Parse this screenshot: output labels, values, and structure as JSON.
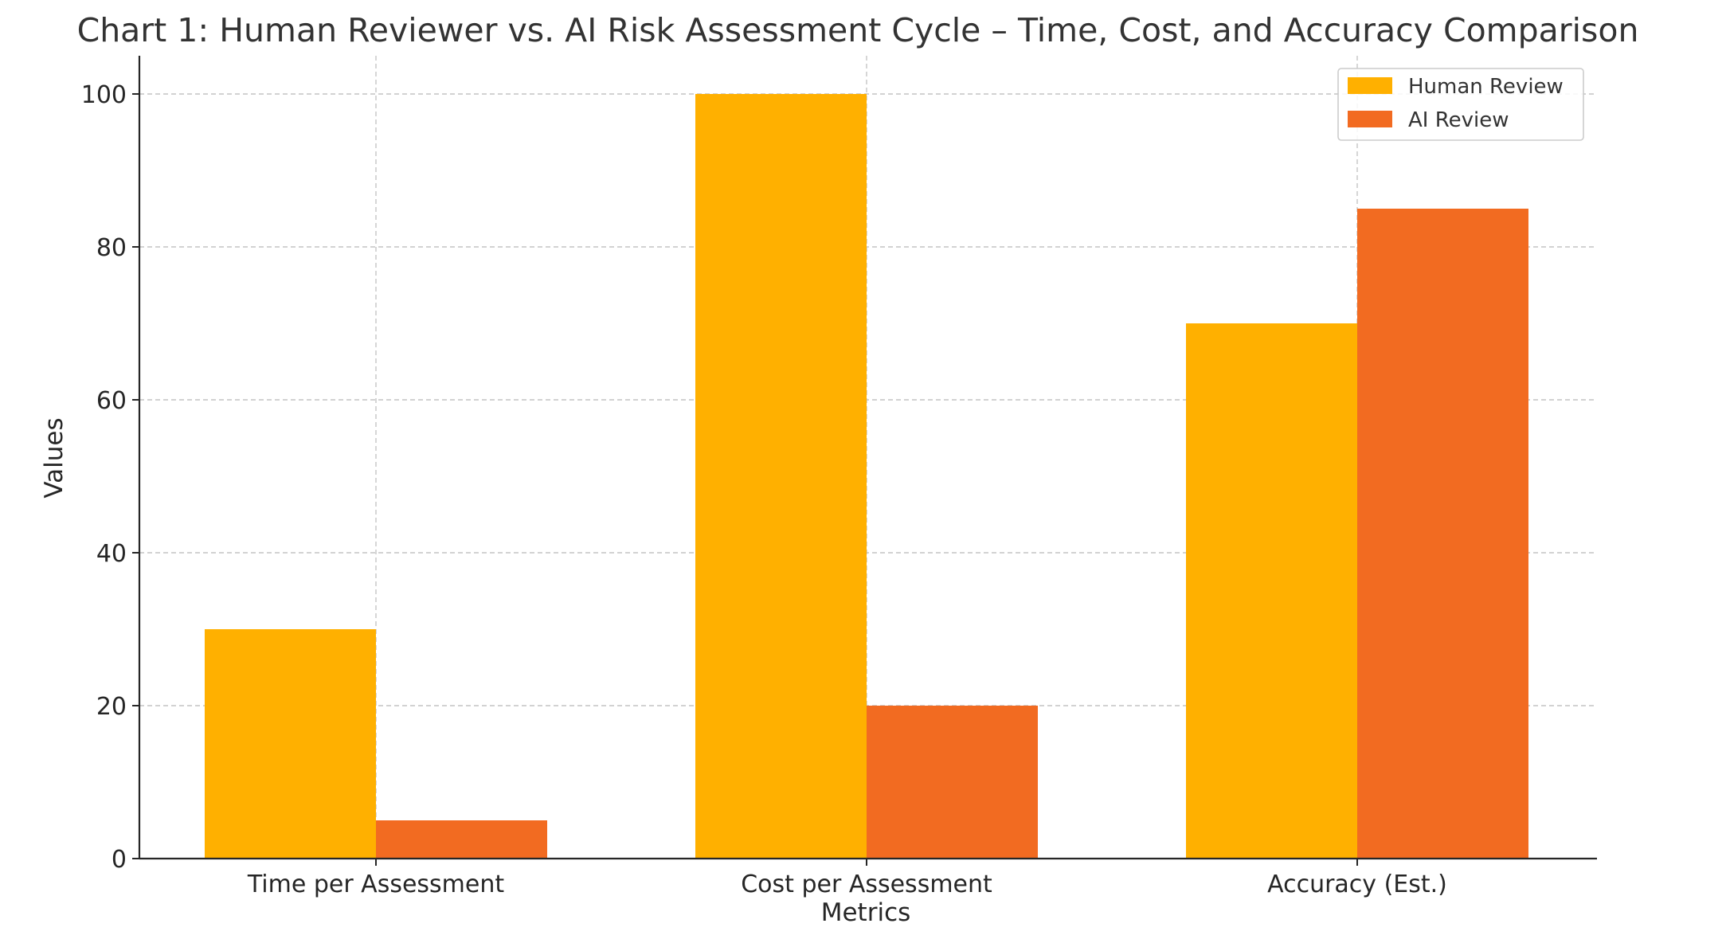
{
  "chart_data": {
    "type": "bar",
    "title": "Chart 1: Human Reviewer vs. AI Risk Assessment Cycle – Time, Cost, and Accuracy Comparison",
    "xlabel": "Metrics",
    "ylabel": "Values",
    "categories": [
      "Time per Assessment",
      "Cost per Assessment",
      "Accuracy (Est.)"
    ],
    "series": [
      {
        "name": "Human Review",
        "values": [
          30,
          100,
          70
        ],
        "color": "#FFB000"
      },
      {
        "name": "AI Review",
        "values": [
          5,
          20,
          85
        ],
        "color": "#F26B21"
      }
    ],
    "ylim": [
      0,
      105
    ],
    "yticks": [
      0,
      20,
      40,
      60,
      80,
      100
    ],
    "grid": true,
    "legend_position": "top-right"
  }
}
